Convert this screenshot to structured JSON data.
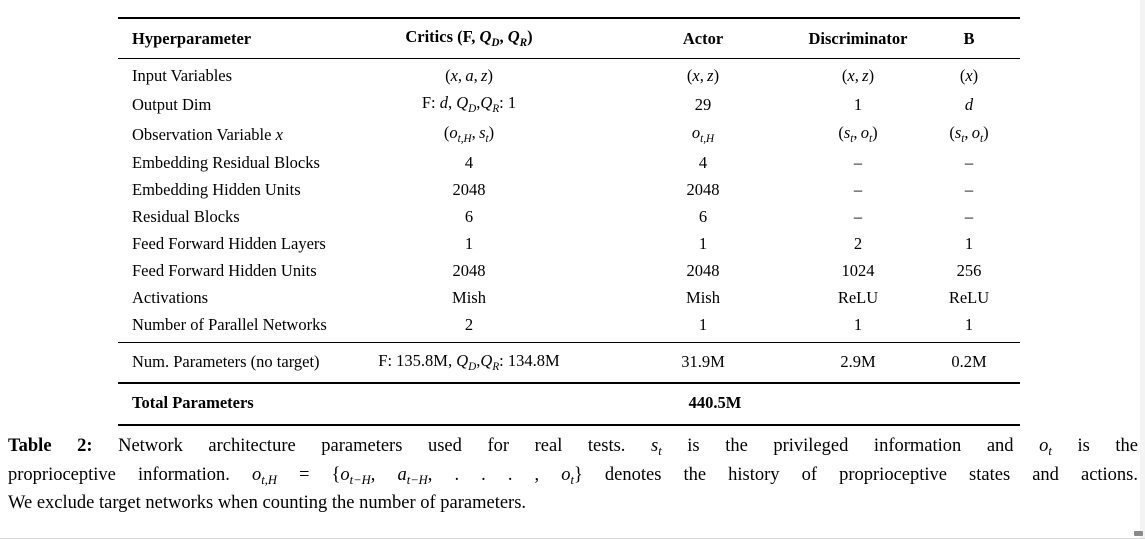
{
  "page": {
    "background_color": "#ffffff",
    "text_color": "#000000",
    "rule_color": "#000000",
    "edge_strip_color": "#f4f4f5",
    "bottom_line_color": "#d9d9d9",
    "corner_fragment_color": "#8a8a8a"
  },
  "table": {
    "headers": [
      "Hyperparameter",
      "Critics (F, <i>Q<sub>D</sub></i>, <i>Q<sub>R</sub></i>)",
      "Actor",
      "Discriminator",
      "B"
    ],
    "rows": [
      {
        "label": "Input Variables",
        "values": [
          "(<i>x</i>,&#8201;<i>a</i>,&#8201;<i>z</i>)",
          "(<i>x</i>,&#8201;<i>z</i>)",
          "(<i>x</i>,&#8201;<i>z</i>)",
          "(<i>x</i>)"
        ]
      },
      {
        "label": "Output Dim",
        "values": [
          "F: <i>d</i>, <i>Q<sub>D</sub></i>,<i>Q<sub>R</sub></i>: 1",
          "29",
          "1",
          "<i>d</i>"
        ]
      },
      {
        "label": "Observation Variable <i>x</i>",
        "values": [
          "(<i>o<sub>t,H</sub></i>,&#8201;<i>s<sub>t</sub></i>)",
          "<i>o<sub>t,H</sub></i>",
          "(<i>s<sub>t</sub></i>,&#8201;<i>o<sub>t</sub></i>)",
          "(<i>s<sub>t</sub></i>,&#8201;<i>o<sub>t</sub></i>)"
        ]
      },
      {
        "label": "Embedding Residual Blocks",
        "values": [
          "4",
          "4",
          "–",
          "–"
        ]
      },
      {
        "label": "Embedding Hidden Units",
        "values": [
          "2048",
          "2048",
          "–",
          "–"
        ]
      },
      {
        "label": "Residual Blocks",
        "values": [
          "6",
          "6",
          "–",
          "–"
        ]
      },
      {
        "label": "Feed Forward Hidden Layers",
        "values": [
          "1",
          "1",
          "2",
          "1"
        ]
      },
      {
        "label": "Feed Forward Hidden Units",
        "values": [
          "2048",
          "2048",
          "1024",
          "256"
        ]
      },
      {
        "label": "Activations",
        "values": [
          "Mish",
          "Mish",
          "ReLU",
          "ReLU"
        ]
      },
      {
        "label": "Number of Parallel Networks",
        "values": [
          "2",
          "1",
          "1",
          "1"
        ]
      }
    ],
    "params_row": {
      "label": "Num. Parameters (no target)",
      "values": [
        "F: 135.8M, <i>Q<sub>D</sub></i>,<i>Q<sub>R</sub></i>: 134.8M",
        "31.9M",
        "2.9M",
        "0.2M"
      ]
    },
    "total_row": {
      "label": "Total Parameters",
      "value": "440.5M"
    }
  },
  "caption": {
    "lines": [
      "<b>Table 2:</b> Network architecture parameters used for real tests. <i>s<sub>t</sub></i> is the privileged information and <i>o<sub>t</sub></i> is the",
      "proprioceptive information. <i>o<sub>t,H</sub></i> = {<i>o<sub>t−H</sub></i>, <i>a<sub>t−H</sub></i>, . . . , <i>o<sub>t</sub></i>} denotes the history of proprioceptive states and actions.",
      "We exclude target networks when counting the number of parameters."
    ]
  }
}
